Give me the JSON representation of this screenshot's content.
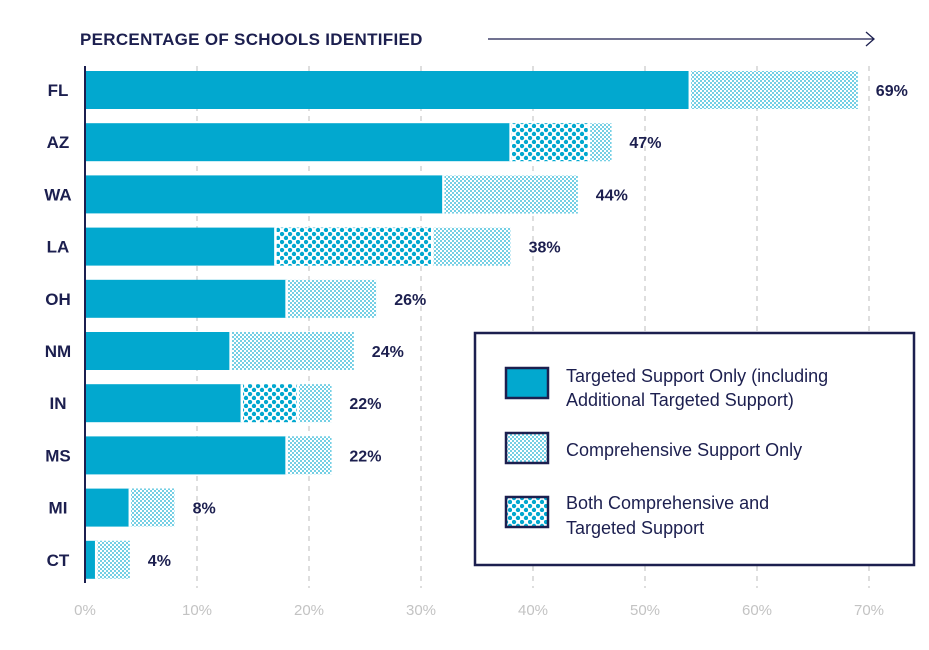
{
  "chart_data": {
    "type": "bar",
    "orientation": "horizontal",
    "stacked": true,
    "xlabel": "PERCENTAGE OF SCHOOLS IDENTIFIED",
    "xlim": [
      0,
      70
    ],
    "ticks": [
      "0%",
      "10%",
      "20%",
      "30%",
      "40%",
      "50%",
      "60%",
      "70%"
    ],
    "grid": true,
    "categories": [
      "FL",
      "AZ",
      "WA",
      "LA",
      "OH",
      "NM",
      "IN",
      "MS",
      "MI",
      "CT"
    ],
    "totals": [
      "69%",
      "47%",
      "44%",
      "38%",
      "26%",
      "24%",
      "22%",
      "22%",
      "8%",
      "4%"
    ],
    "series": [
      {
        "name": "Targeted Support Only (including Additional Targeted Support)",
        "pattern": "solid",
        "values": [
          54,
          38,
          32,
          17,
          18,
          13,
          14,
          18,
          4,
          1
        ]
      },
      {
        "name": "Both Comprehensive and Targeted Support",
        "pattern": "large-dots",
        "values": [
          0,
          7,
          0,
          14,
          0,
          0,
          5,
          0,
          0,
          0
        ]
      },
      {
        "name": "Comprehensive Support Only",
        "pattern": "fine-dots",
        "values": [
          15,
          2,
          12,
          7,
          8,
          11,
          3,
          4,
          4,
          3
        ]
      }
    ],
    "legend": {
      "position": "bottom-right",
      "items": [
        {
          "lines": [
            "Targeted Support Only (including",
            "Additional Targeted Support)"
          ],
          "pattern": "solid"
        },
        {
          "lines": [
            "Comprehensive Support Only"
          ],
          "pattern": "fine-dots"
        },
        {
          "lines": [
            "Both Comprehensive and",
            "Targeted Support"
          ],
          "pattern": "large-dots"
        }
      ]
    },
    "colors": {
      "bar": "#02a8cf",
      "text": "#1c1f4f",
      "grid": "#bdbdbd",
      "tick": "#c3c3c3"
    }
  }
}
